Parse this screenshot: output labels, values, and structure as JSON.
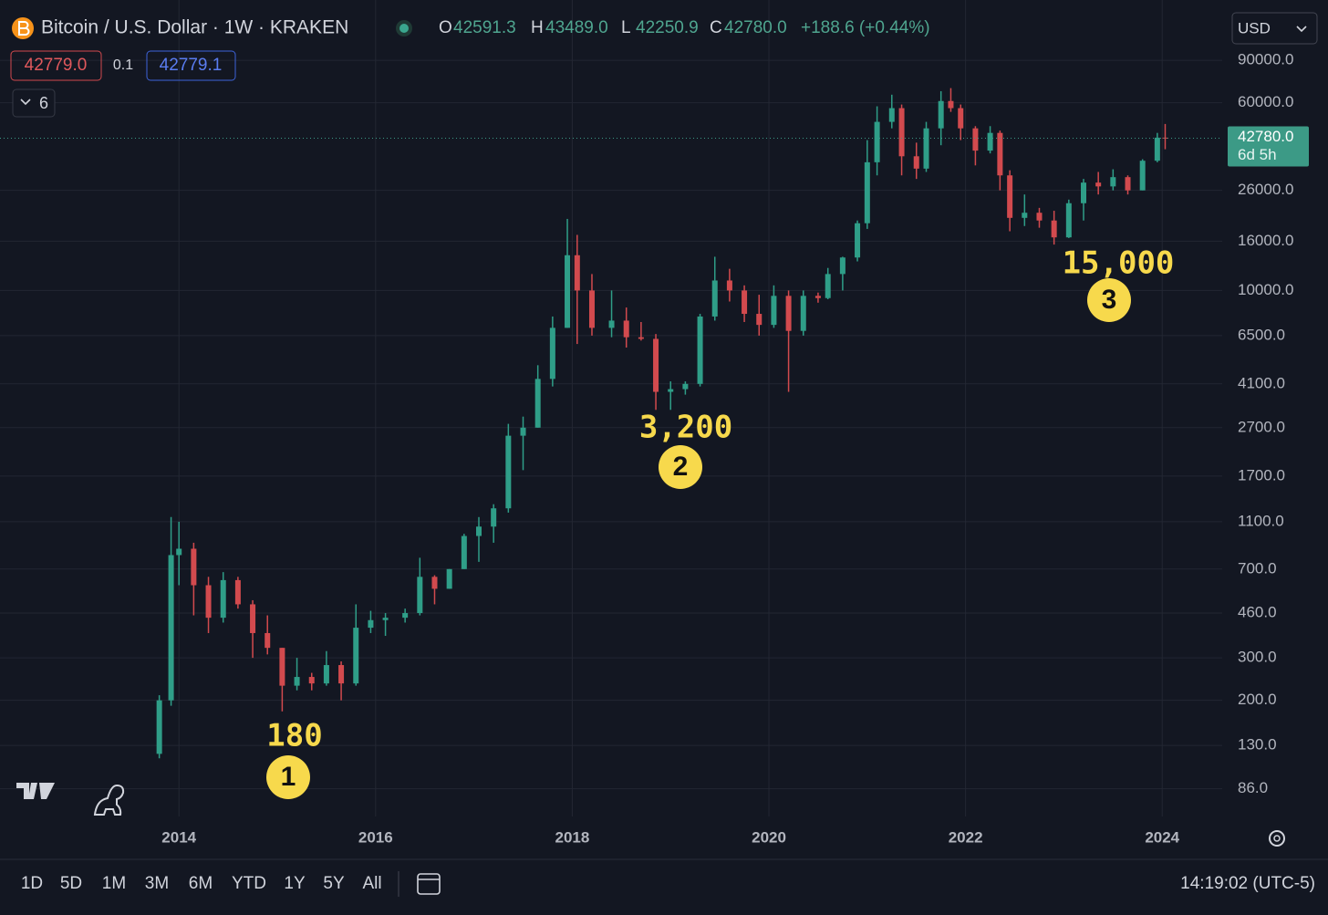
{
  "header": {
    "symbol": "Bitcoin / U.S. Dollar · 1W · KRAKEN",
    "ohlc": [
      {
        "key": "O",
        "value": "42591.3"
      },
      {
        "key": "H",
        "value": "43489.0"
      },
      {
        "key": "L",
        "value": "42250.9"
      },
      {
        "key": "C",
        "value": "42780.0"
      }
    ],
    "change": "+188.6 (+0.44%)",
    "sell": "42779.0",
    "spread": "0.1",
    "buy": "42779.1",
    "indicators": "6",
    "currency": "USD"
  },
  "footer": {
    "ranges": [
      "1D",
      "5D",
      "1M",
      "3M",
      "6M",
      "YTD",
      "1Y",
      "5Y",
      "All"
    ],
    "time": "14:19:02 (UTC-5)"
  },
  "chart_data": {
    "type": "candlestick",
    "log_scale": true,
    "grid": true,
    "up_color": "#2f9e88",
    "down_color": "#d24a4e",
    "xlim": [
      2012.18,
      2024.61
    ],
    "xticks": [
      2014,
      2016,
      2018,
      2020,
      2022,
      2024
    ],
    "ylim": [
      66,
      160000
    ],
    "yticks": [
      {
        "value": 86,
        "label": "86.0"
      },
      {
        "value": 130,
        "label": "130.0"
      },
      {
        "value": 200,
        "label": "200.0"
      },
      {
        "value": 300,
        "label": "300.0"
      },
      {
        "value": 460,
        "label": "460.0"
      },
      {
        "value": 700,
        "label": "700.0"
      },
      {
        "value": 1100,
        "label": "1100.0"
      },
      {
        "value": 1700,
        "label": "1700.0"
      },
      {
        "value": 2700,
        "label": "2700.0"
      },
      {
        "value": 4100,
        "label": "4100.0"
      },
      {
        "value": 6500,
        "label": "6500.0"
      },
      {
        "value": 10000,
        "label": "10000.0"
      },
      {
        "value": 16000,
        "label": "16000.0"
      },
      {
        "value": 26000,
        "label": "26000.0"
      },
      {
        "value": 60000,
        "label": "60000.0"
      },
      {
        "value": 90000,
        "label": "90000.0"
      }
    ],
    "last_price": {
      "value": 42780,
      "label": "42780.0"
    },
    "countdown": "6d 5h",
    "candles": {
      "x": [
        2013.8,
        2013.92,
        2014.0,
        2014.15,
        2014.3,
        2014.45,
        2014.6,
        2014.75,
        2014.9,
        2015.05,
        2015.2,
        2015.35,
        2015.5,
        2015.65,
        2015.8,
        2015.95,
        2016.1,
        2016.3,
        2016.45,
        2016.6,
        2016.75,
        2016.9,
        2017.05,
        2017.2,
        2017.35,
        2017.5,
        2017.65,
        2017.8,
        2017.95,
        2018.05,
        2018.2,
        2018.4,
        2018.55,
        2018.7,
        2018.85,
        2019.0,
        2019.15,
        2019.3,
        2019.45,
        2019.6,
        2019.75,
        2019.9,
        2020.05,
        2020.2,
        2020.35,
        2020.5,
        2020.6,
        2020.75,
        2020.9,
        2021.0,
        2021.1,
        2021.25,
        2021.35,
        2021.5,
        2021.6,
        2021.75,
        2021.85,
        2021.95,
        2022.1,
        2022.25,
        2022.35,
        2022.45,
        2022.6,
        2022.75,
        2022.9,
        2023.05,
        2023.2,
        2023.35,
        2023.5,
        2023.65,
        2023.8,
        2023.95,
        2024.03
      ],
      "open": [
        120,
        200,
        800,
        850,
        600,
        440,
        630,
        500,
        380,
        330,
        230,
        250,
        235,
        280,
        235,
        400,
        430,
        440,
        460,
        650,
        580,
        700,
        960,
        1050,
        1250,
        2500,
        2700,
        4300,
        7000,
        14000,
        10000,
        7000,
        7500,
        6400,
        6300,
        3800,
        3900,
        4100,
        7800,
        11000,
        10000,
        8000,
        7200,
        9500,
        6800,
        9500,
        9300,
        11700,
        13700,
        19000,
        34000,
        50000,
        57000,
        36000,
        32000,
        47000,
        61000,
        57000,
        47000,
        38000,
        45000,
        30000,
        20000,
        21000,
        19500,
        16600,
        23000,
        28000,
        27000,
        29500,
        26000,
        34500,
        43000
      ],
      "high": [
        210,
        1150,
        1100,
        900,
        650,
        680,
        650,
        520,
        450,
        330,
        300,
        260,
        320,
        290,
        500,
        470,
        460,
        480,
        780,
        660,
        700,
        980,
        1150,
        1300,
        2800,
        3000,
        4900,
        7800,
        19800,
        17000,
        11700,
        10000,
        8500,
        7400,
        6600,
        4200,
        4200,
        8000,
        13800,
        12300,
        10500,
        9600,
        10500,
        10000,
        10000,
        9800,
        12400,
        13800,
        19500,
        42000,
        58000,
        64800,
        59000,
        41000,
        50000,
        67000,
        69000,
        59000,
        48000,
        48000,
        46000,
        31500,
        25000,
        22000,
        21400,
        23800,
        29000,
        31000,
        31800,
        30000,
        35000,
        45000,
        49000
      ],
      "low": [
        115,
        190,
        600,
        450,
        380,
        420,
        480,
        300,
        310,
        180,
        220,
        220,
        230,
        200,
        230,
        380,
        370,
        420,
        450,
        500,
        580,
        700,
        750,
        900,
        1200,
        1800,
        2700,
        4000,
        7000,
        6000,
        6500,
        6400,
        5800,
        6200,
        3200,
        3200,
        3700,
        4000,
        7500,
        9000,
        7400,
        6500,
        7000,
        3800,
        6500,
        8900,
        9200,
        10000,
        13200,
        18000,
        30000,
        47000,
        30000,
        29000,
        31000,
        40000,
        55000,
        42000,
        33000,
        37000,
        26000,
        17600,
        18500,
        18200,
        15500,
        16500,
        19500,
        25000,
        26000,
        25000,
        26000,
        34000,
        38500
      ],
      "close": [
        200,
        800,
        850,
        600,
        440,
        630,
        500,
        380,
        330,
        230,
        250,
        235,
        280,
        235,
        400,
        430,
        440,
        460,
        650,
        580,
        700,
        960,
        1050,
        1250,
        2500,
        2700,
        4300,
        7000,
        14000,
        10000,
        7000,
        7500,
        6400,
        6300,
        3800,
        3900,
        4100,
        7800,
        11000,
        10000,
        8000,
        7200,
        9500,
        6800,
        9500,
        9300,
        11700,
        13700,
        19000,
        34000,
        50000,
        57000,
        36000,
        32000,
        47000,
        61000,
        57000,
        47000,
        38000,
        45000,
        30000,
        20000,
        21000,
        19500,
        16600,
        23000,
        28000,
        27000,
        29500,
        26000,
        34500,
        43000,
        42780
      ]
    },
    "annotations": [
      {
        "text": "180",
        "number": "1"
      },
      {
        "text": "3,200",
        "number": "2"
      },
      {
        "text": "15,000",
        "number": "3"
      }
    ]
  }
}
